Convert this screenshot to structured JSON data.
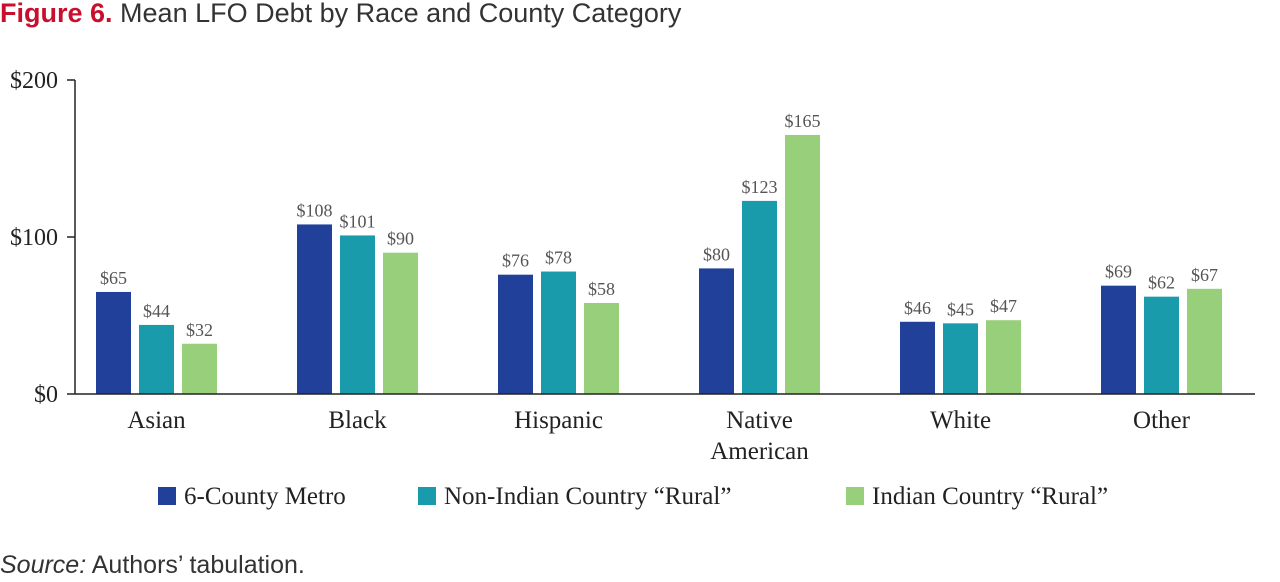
{
  "figure": {
    "label": "Figure 6.",
    "title": "Mean LFO Debt by Race and County Category",
    "source_label": "Source:",
    "source_text": "Authors’ tabulation."
  },
  "chart_data": {
    "type": "bar",
    "title": "Mean LFO Debt by Race and County Category",
    "xlabel": "",
    "ylabel": "",
    "ylim": [
      0,
      200
    ],
    "yticks": [
      0,
      100,
      200
    ],
    "ytick_labels": [
      "$0",
      "$100",
      "$200"
    ],
    "categories": [
      "Asian",
      "Black",
      "Hispanic",
      "Native American",
      "White",
      "Other"
    ],
    "category_lines": [
      [
        "Asian"
      ],
      [
        "Black"
      ],
      [
        "Hispanic"
      ],
      [
        "Native",
        "American"
      ],
      [
        "White"
      ],
      [
        "Other"
      ]
    ],
    "series": [
      {
        "name": "6-County Metro",
        "color": "#21409a",
        "values": [
          65,
          108,
          76,
          80,
          46,
          69
        ],
        "labels": [
          "$65",
          "$108",
          "$76",
          "$80",
          "$46",
          "$69"
        ]
      },
      {
        "name": "Non-Indian Country “Rural”",
        "color": "#1a9bac",
        "values": [
          44,
          101,
          78,
          123,
          45,
          62
        ],
        "labels": [
          "$44",
          "$101",
          "$78",
          "$123",
          "$45",
          "$62"
        ]
      },
      {
        "name": "Indian Country “Rural”",
        "color": "#98cf7b",
        "values": [
          32,
          90,
          58,
          165,
          47,
          67
        ],
        "labels": [
          "$32",
          "$90",
          "$58",
          "$165",
          "$47",
          "$67"
        ]
      }
    ],
    "grid": false,
    "legend_position": "bottom"
  }
}
